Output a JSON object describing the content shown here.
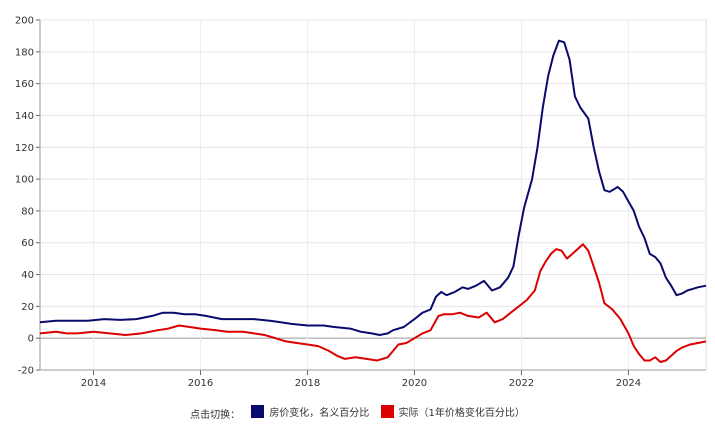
{
  "legend": {
    "prompt": "点击切换："
  },
  "chart_data": {
    "type": "line",
    "xlim": [
      2013.0,
      2025.45
    ],
    "ylim": [
      -20,
      200
    ],
    "x_ticks": [
      "2014",
      "2016",
      "2018",
      "2020",
      "2022",
      "2024"
    ],
    "y_ticks": [
      "-20",
      "0",
      "20",
      "40",
      "60",
      "80",
      "100",
      "120",
      "140",
      "160",
      "180",
      "200"
    ],
    "grid": true,
    "legend_position": "bottom",
    "series": [
      {
        "name": "房价变化，名义百分比",
        "color": "#0a0a6e",
        "points": [
          [
            2013.0,
            10
          ],
          [
            2013.3,
            11
          ],
          [
            2013.6,
            11
          ],
          [
            2013.9,
            11
          ],
          [
            2014.2,
            12
          ],
          [
            2014.5,
            11.5
          ],
          [
            2014.8,
            12
          ],
          [
            2015.1,
            14
          ],
          [
            2015.3,
            16
          ],
          [
            2015.5,
            16
          ],
          [
            2015.7,
            15
          ],
          [
            2015.9,
            15
          ],
          [
            2016.1,
            14
          ],
          [
            2016.4,
            12
          ],
          [
            2016.7,
            12
          ],
          [
            2017.0,
            12
          ],
          [
            2017.3,
            11
          ],
          [
            2017.5,
            10
          ],
          [
            2017.7,
            9
          ],
          [
            2018.0,
            8
          ],
          [
            2018.3,
            8
          ],
          [
            2018.5,
            7
          ],
          [
            2018.8,
            6
          ],
          [
            2019.0,
            4
          ],
          [
            2019.2,
            3
          ],
          [
            2019.35,
            2
          ],
          [
            2019.5,
            3
          ],
          [
            2019.6,
            5
          ],
          [
            2019.8,
            7
          ],
          [
            2020.0,
            12
          ],
          [
            2020.15,
            16
          ],
          [
            2020.3,
            18
          ],
          [
            2020.4,
            26
          ],
          [
            2020.5,
            29
          ],
          [
            2020.6,
            27
          ],
          [
            2020.75,
            29
          ],
          [
            2020.9,
            32
          ],
          [
            2021.0,
            31
          ],
          [
            2021.15,
            33
          ],
          [
            2021.3,
            36
          ],
          [
            2021.45,
            30
          ],
          [
            2021.6,
            32
          ],
          [
            2021.75,
            38
          ],
          [
            2021.85,
            45
          ],
          [
            2021.95,
            65
          ],
          [
            2022.05,
            82
          ],
          [
            2022.2,
            100
          ],
          [
            2022.3,
            120
          ],
          [
            2022.4,
            145
          ],
          [
            2022.5,
            165
          ],
          [
            2022.6,
            178
          ],
          [
            2022.7,
            187
          ],
          [
            2022.8,
            186
          ],
          [
            2022.9,
            175
          ],
          [
            2023.0,
            152
          ],
          [
            2023.1,
            145
          ],
          [
            2023.25,
            138
          ],
          [
            2023.35,
            120
          ],
          [
            2023.45,
            105
          ],
          [
            2023.55,
            93
          ],
          [
            2023.65,
            92
          ],
          [
            2023.8,
            95
          ],
          [
            2023.9,
            92
          ],
          [
            2024.0,
            86
          ],
          [
            2024.1,
            80
          ],
          [
            2024.2,
            70
          ],
          [
            2024.3,
            63
          ],
          [
            2024.4,
            53
          ],
          [
            2024.5,
            51
          ],
          [
            2024.6,
            47
          ],
          [
            2024.7,
            38
          ],
          [
            2024.8,
            33
          ],
          [
            2024.9,
            27
          ],
          [
            2025.0,
            28
          ],
          [
            2025.1,
            30
          ],
          [
            2025.2,
            31
          ],
          [
            2025.3,
            32
          ],
          [
            2025.45,
            33
          ]
        ]
      },
      {
        "name": "实际（1年价格变化百分比）",
        "color": "#dd0000",
        "points": [
          [
            2013.0,
            3
          ],
          [
            2013.3,
            4
          ],
          [
            2013.5,
            3
          ],
          [
            2013.7,
            3
          ],
          [
            2014.0,
            4
          ],
          [
            2014.3,
            3
          ],
          [
            2014.6,
            2
          ],
          [
            2014.9,
            3
          ],
          [
            2015.2,
            5
          ],
          [
            2015.4,
            6
          ],
          [
            2015.6,
            8
          ],
          [
            2015.8,
            7
          ],
          [
            2016.0,
            6
          ],
          [
            2016.3,
            5
          ],
          [
            2016.5,
            4
          ],
          [
            2016.8,
            4
          ],
          [
            2017.0,
            3
          ],
          [
            2017.2,
            2
          ],
          [
            2017.4,
            0
          ],
          [
            2017.6,
            -2
          ],
          [
            2017.8,
            -3
          ],
          [
            2018.0,
            -4
          ],
          [
            2018.2,
            -5
          ],
          [
            2018.4,
            -8
          ],
          [
            2018.55,
            -11
          ],
          [
            2018.7,
            -13
          ],
          [
            2018.9,
            -12
          ],
          [
            2019.1,
            -13
          ],
          [
            2019.3,
            -14
          ],
          [
            2019.5,
            -12
          ],
          [
            2019.6,
            -8
          ],
          [
            2019.7,
            -4
          ],
          [
            2019.85,
            -3
          ],
          [
            2020.0,
            0
          ],
          [
            2020.15,
            3
          ],
          [
            2020.3,
            5
          ],
          [
            2020.45,
            14
          ],
          [
            2020.55,
            15
          ],
          [
            2020.7,
            15
          ],
          [
            2020.85,
            16
          ],
          [
            2021.0,
            14
          ],
          [
            2021.2,
            13
          ],
          [
            2021.35,
            16
          ],
          [
            2021.5,
            10
          ],
          [
            2021.65,
            12
          ],
          [
            2021.8,
            16
          ],
          [
            2021.95,
            20
          ],
          [
            2022.1,
            24
          ],
          [
            2022.25,
            30
          ],
          [
            2022.35,
            42
          ],
          [
            2022.45,
            48
          ],
          [
            2022.55,
            53
          ],
          [
            2022.65,
            56
          ],
          [
            2022.75,
            55
          ],
          [
            2022.85,
            50
          ],
          [
            2022.95,
            53
          ],
          [
            2023.05,
            56
          ],
          [
            2023.15,
            59
          ],
          [
            2023.25,
            55
          ],
          [
            2023.35,
            45
          ],
          [
            2023.45,
            35
          ],
          [
            2023.55,
            22
          ],
          [
            2023.7,
            18
          ],
          [
            2023.85,
            12
          ],
          [
            2024.0,
            3
          ],
          [
            2024.1,
            -5
          ],
          [
            2024.2,
            -10
          ],
          [
            2024.3,
            -14
          ],
          [
            2024.4,
            -14
          ],
          [
            2024.5,
            -12
          ],
          [
            2024.6,
            -15
          ],
          [
            2024.7,
            -14
          ],
          [
            2024.8,
            -11
          ],
          [
            2024.9,
            -8
          ],
          [
            2025.0,
            -6
          ],
          [
            2025.15,
            -4
          ],
          [
            2025.3,
            -3
          ],
          [
            2025.45,
            -2
          ]
        ]
      }
    ]
  }
}
